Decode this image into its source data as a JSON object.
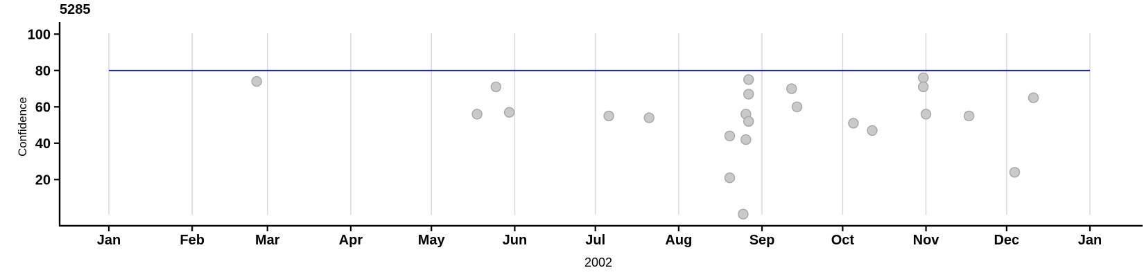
{
  "chart_data": {
    "type": "scatter",
    "title": "5285",
    "xlabel": "2002",
    "ylabel": "Confidence",
    "x_axis": {
      "ticks": [
        {
          "label": "Jan",
          "date": "2002-01-01"
        },
        {
          "label": "Feb",
          "date": "2002-02-01"
        },
        {
          "label": "Mar",
          "date": "2002-03-01"
        },
        {
          "label": "Apr",
          "date": "2002-04-01"
        },
        {
          "label": "May",
          "date": "2002-05-01"
        },
        {
          "label": "Jun",
          "date": "2002-06-01"
        },
        {
          "label": "Jul",
          "date": "2002-07-01"
        },
        {
          "label": "Aug",
          "date": "2002-08-01"
        },
        {
          "label": "Sep",
          "date": "2002-09-01"
        },
        {
          "label": "Oct",
          "date": "2002-10-01"
        },
        {
          "label": "Nov",
          "date": "2002-11-01"
        },
        {
          "label": "Dec",
          "date": "2002-12-01"
        },
        {
          "label": "Jan",
          "date": "2003-01-01"
        }
      ],
      "grid": "vertical-month-lines"
    },
    "y_axis": {
      "ticks": [
        100,
        80,
        60,
        40,
        20
      ],
      "range": [
        -5,
        105
      ]
    },
    "reference_line": {
      "y": 80,
      "x_start": "2002-01-01",
      "x_end": "2003-01-01"
    },
    "points": [
      {
        "date": "2002-02-25",
        "value": 74
      },
      {
        "date": "2002-05-18",
        "value": 56
      },
      {
        "date": "2002-05-25",
        "value": 71
      },
      {
        "date": "2002-05-30",
        "value": 57
      },
      {
        "date": "2002-07-06",
        "value": 55
      },
      {
        "date": "2002-07-21",
        "value": 54
      },
      {
        "date": "2002-08-20",
        "value": 44
      },
      {
        "date": "2002-08-20",
        "value": 21
      },
      {
        "date": "2002-08-25",
        "value": 1
      },
      {
        "date": "2002-08-26",
        "value": 42
      },
      {
        "date": "2002-08-26",
        "value": 56
      },
      {
        "date": "2002-08-27",
        "value": 75
      },
      {
        "date": "2002-08-27",
        "value": 67
      },
      {
        "date": "2002-08-27",
        "value": 52
      },
      {
        "date": "2002-09-12",
        "value": 70
      },
      {
        "date": "2002-09-14",
        "value": 60
      },
      {
        "date": "2002-10-05",
        "value": 51
      },
      {
        "date": "2002-10-12",
        "value": 47
      },
      {
        "date": "2002-10-31",
        "value": 76
      },
      {
        "date": "2002-10-31",
        "value": 71
      },
      {
        "date": "2002-11-01",
        "value": 56
      },
      {
        "date": "2002-11-17",
        "value": 55
      },
      {
        "date": "2002-12-04",
        "value": 24
      },
      {
        "date": "2002-12-11",
        "value": 65
      }
    ],
    "colors": {
      "reference_line": "#1414CC",
      "point_fill": "#C9C9C9",
      "point_stroke": "#A6A6A6",
      "gridline": "#D9D9D9",
      "axis": "#000000"
    },
    "legend": "none"
  }
}
